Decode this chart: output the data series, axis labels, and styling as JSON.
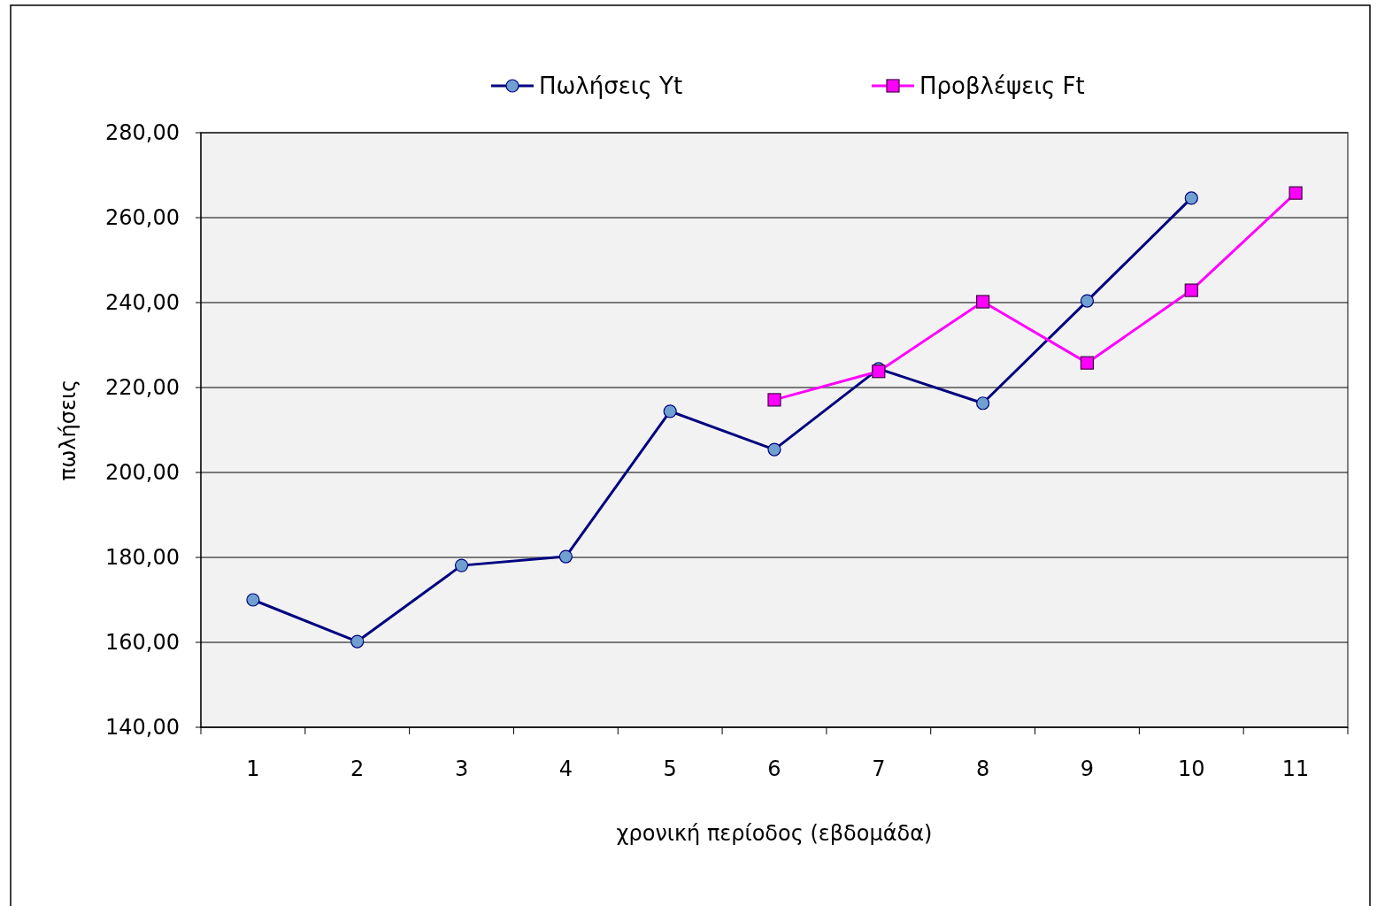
{
  "chart_data": {
    "type": "line",
    "xlabel": "χρονική περίοδος (εβδομάδα)",
    "ylabel": "πωλήσεις",
    "categories": [
      "1",
      "2",
      "3",
      "4",
      "5",
      "6",
      "7",
      "8",
      "9",
      "10",
      "11"
    ],
    "series": [
      {
        "name": "Πωλήσεις Yt",
        "color": "#000080",
        "marker": "circle",
        "values": [
          170,
          160.2,
          178.1,
          180.2,
          214.4,
          205.4,
          224.4,
          216.3,
          240.4,
          264.6,
          null
        ]
      },
      {
        "name": "Προβλέψεις Ft",
        "color": "#ff00ff",
        "marker": "square",
        "values": [
          null,
          null,
          null,
          null,
          null,
          217.1,
          223.8,
          240.2,
          225.8,
          242.9,
          265.8
        ]
      }
    ],
    "ylim": [
      140,
      280
    ],
    "yticks": [
      {
        "value": 140,
        "label": "140,00"
      },
      {
        "value": 160,
        "label": "160,00"
      },
      {
        "value": 180,
        "label": "180,00"
      },
      {
        "value": 200,
        "label": "200,00"
      },
      {
        "value": 220,
        "label": "220,00"
      },
      {
        "value": 240,
        "label": "240,00"
      },
      {
        "value": 260,
        "label": "260,00"
      },
      {
        "value": 280,
        "label": "280,00"
      }
    ],
    "grid": "y",
    "legend": "top"
  }
}
